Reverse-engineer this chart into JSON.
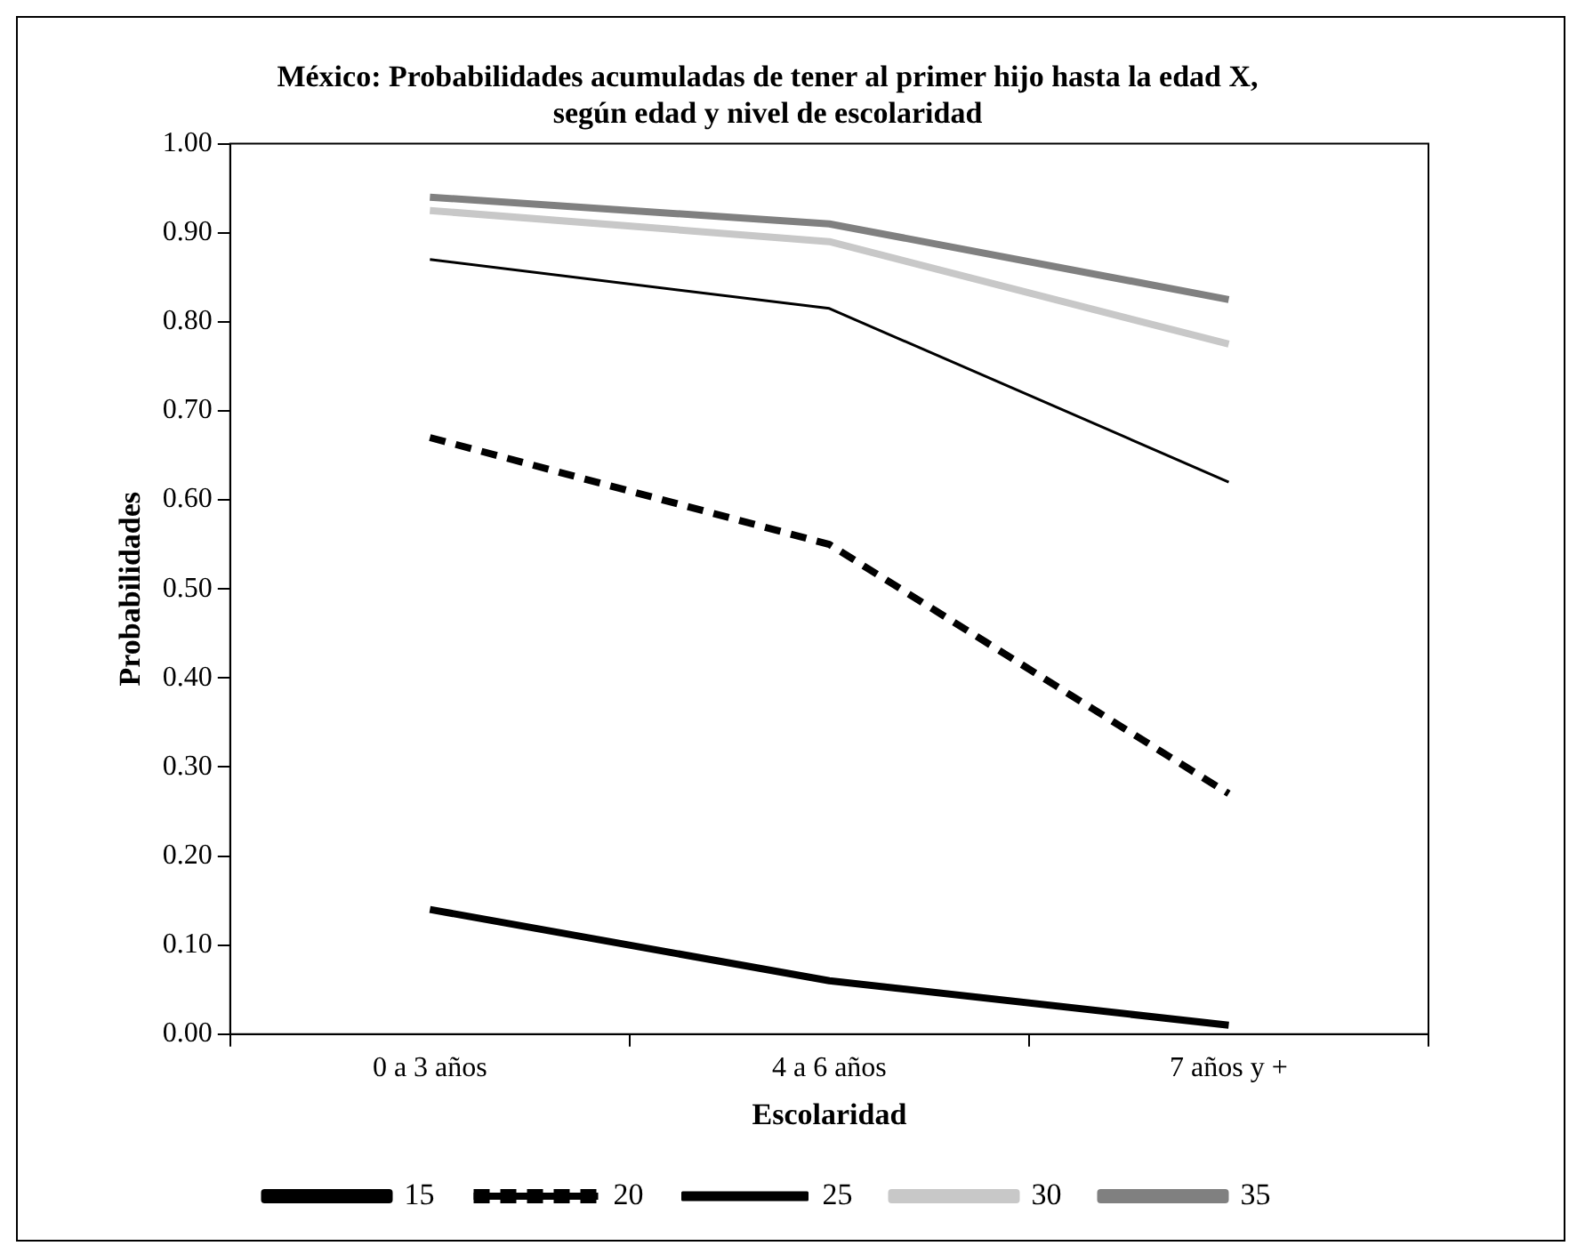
{
  "chart_data": {
    "type": "line",
    "title": "México: Probabilidades acumuladas de tener al primer hijo hasta la edad X, según edad y nivel de escolaridad",
    "xlabel": "Escolaridad",
    "ylabel": "Probabilidades",
    "categories": [
      "0 a 3 años",
      "4 a 6 años",
      "7 años y +"
    ],
    "series": [
      {
        "name": "15",
        "color": "#000000",
        "values": [
          0.14,
          0.06,
          0.01
        ]
      },
      {
        "name": "20",
        "color": "#000000",
        "line_style": "dashed",
        "values": [
          0.67,
          0.55,
          0.27
        ]
      },
      {
        "name": "25",
        "color": "#000000",
        "values": [
          0.87,
          0.815,
          0.62
        ]
      },
      {
        "name": "30",
        "color": "#c8c8c8",
        "values": [
          0.925,
          0.89,
          0.775
        ]
      },
      {
        "name": "35",
        "color": "#808080",
        "values": [
          0.94,
          0.91,
          0.825
        ]
      }
    ],
    "ylim": [
      0,
      1
    ],
    "yticks": [
      {
        "value": 0,
        "label": "0.00"
      },
      {
        "value": 0.1,
        "label": "0.10"
      },
      {
        "value": 0.2,
        "label": "0.20"
      },
      {
        "value": 0.3,
        "label": "0.30"
      },
      {
        "value": 0.4,
        "label": "0.40"
      },
      {
        "value": 0.5,
        "label": "0.50"
      },
      {
        "value": 0.6,
        "label": "0.60"
      },
      {
        "value": 0.7,
        "label": "0.70"
      },
      {
        "value": 0.8,
        "label": "0.80"
      },
      {
        "value": 0.9,
        "label": "0.90"
      },
      {
        "value": 1,
        "label": "1.00"
      }
    ],
    "grid": false,
    "legend": "bottom",
    "marker": "none",
    "line_style": "solid"
  }
}
